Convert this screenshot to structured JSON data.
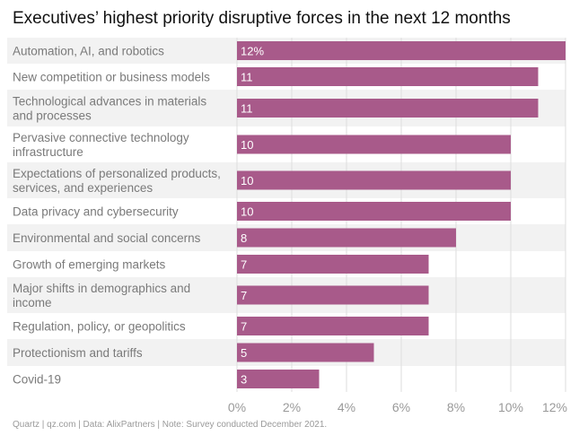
{
  "footer": "Quartz | qz.com | Data: AlixPartners | Note: Survey conducted December 2021.",
  "colors": {
    "bar": "#a85a8a",
    "row_band": "#f2f2f2",
    "text": "#7a7a7a",
    "tick": "#9a9a9a"
  },
  "chart_data": {
    "type": "bar",
    "orientation": "horizontal",
    "title": "Executives’ highest priority disruptive forces in the next 12 months",
    "xlabel": "",
    "ylabel": "",
    "unit": "%",
    "xlim": [
      0,
      12
    ],
    "grid": true,
    "categories": [
      [
        "Automation, AI, and robotics"
      ],
      [
        "New competition or business models"
      ],
      [
        "Technological advances in materials",
        "and processes"
      ],
      [
        "Pervasive connective technology",
        "infrastructure"
      ],
      [
        "Expectations of personalized products,",
        "services, and experiences"
      ],
      [
        "Data privacy and cybersecurity"
      ],
      [
        "Environmental and social concerns"
      ],
      [
        "Growth of emerging markets"
      ],
      [
        "Major shifts in demographics and",
        "income"
      ],
      [
        "Regulation, policy, or geopolitics"
      ],
      [
        "Protectionism and tariffs"
      ],
      [
        "Covid-19"
      ]
    ],
    "values": [
      12,
      11,
      11,
      10,
      10,
      10,
      8,
      7,
      7,
      7,
      5,
      3
    ],
    "value_labels": [
      "12%",
      "11",
      "11",
      "10",
      "10",
      "10",
      "8",
      "7",
      "7",
      "7",
      "5",
      "3"
    ],
    "xticks": [
      0,
      2,
      4,
      6,
      8,
      10,
      12
    ],
    "xtick_labels": [
      "0%",
      "2%",
      "4%",
      "6%",
      "8%",
      "10%",
      "12%"
    ]
  }
}
